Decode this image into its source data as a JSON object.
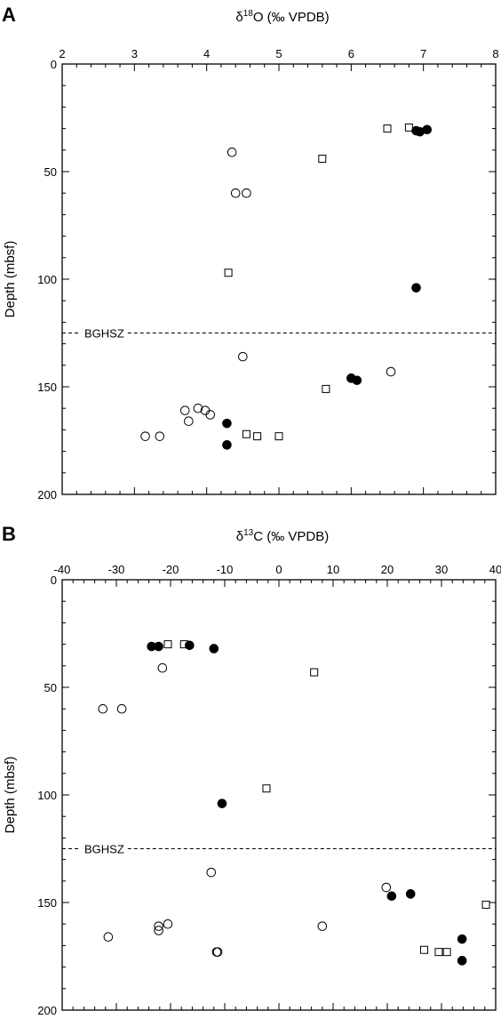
{
  "chart_data": [
    {
      "panel": "A",
      "type": "scatter",
      "x_axis": {
        "label_main": "δ",
        "label_sup": "18",
        "label_rest": "O (‰ VPDB)",
        "min": 2,
        "max": 8,
        "tick_labels": [
          "2",
          "3",
          "4",
          "5",
          "6",
          "7",
          "8"
        ],
        "position": "top"
      },
      "y_axis": {
        "label": "Depth (mbsf)",
        "min": 0,
        "max": 200,
        "inverted": true,
        "tick_labels": [
          "0",
          "50",
          "100",
          "150",
          "200"
        ]
      },
      "annotation": {
        "text": "BGHSZ",
        "depth": 125
      },
      "series": [
        {
          "marker": "open-circle",
          "points": [
            [
              4.35,
              41
            ],
            [
              4.4,
              60
            ],
            [
              4.55,
              60
            ],
            [
              4.5,
              136
            ],
            [
              6.55,
              143
            ],
            [
              3.7,
              161
            ],
            [
              3.75,
              166
            ],
            [
              3.88,
              160
            ],
            [
              3.98,
              161
            ],
            [
              4.05,
              163
            ],
            [
              3.15,
              173
            ],
            [
              3.35,
              173
            ]
          ]
        },
        {
          "marker": "open-square",
          "points": [
            [
              6.5,
              30
            ],
            [
              6.8,
              29.5
            ],
            [
              5.6,
              44
            ],
            [
              4.3,
              97
            ],
            [
              5.65,
              151
            ],
            [
              4.55,
              172
            ],
            [
              4.7,
              173
            ],
            [
              5.0,
              173
            ]
          ]
        },
        {
          "marker": "filled-circle",
          "points": [
            [
              6.9,
              31
            ],
            [
              6.95,
              31.5
            ],
            [
              7.05,
              30.5
            ],
            [
              6.9,
              104
            ],
            [
              6.0,
              146
            ],
            [
              6.08,
              147
            ],
            [
              4.28,
              167
            ],
            [
              4.28,
              177
            ]
          ]
        }
      ]
    },
    {
      "panel": "B",
      "type": "scatter",
      "x_axis": {
        "label_main": "δ",
        "label_sup": "13",
        "label_rest": "C (‰ VPDB)",
        "min": -40,
        "max": 40,
        "tick_labels": [
          "-40",
          "-30",
          "-20",
          "-10",
          "0",
          "10",
          "20",
          "30",
          "40"
        ],
        "position": "top"
      },
      "y_axis": {
        "label": "Depth (mbsf)",
        "min": 0,
        "max": 200,
        "inverted": true,
        "tick_labels": [
          "0",
          "50",
          "100",
          "150",
          "200"
        ]
      },
      "annotation": {
        "text": "BGHSZ",
        "depth": 125
      },
      "series": [
        {
          "marker": "open-circle",
          "points": [
            [
              -21.5,
              41
            ],
            [
              -32.5,
              60
            ],
            [
              -29,
              60
            ],
            [
              -12.5,
              136
            ],
            [
              19.8,
              143
            ],
            [
              -31.5,
              166
            ],
            [
              -22.2,
              161
            ],
            [
              -22.2,
              163
            ],
            [
              -20.5,
              160
            ],
            [
              8,
              161
            ],
            [
              -11.5,
              173
            ],
            [
              -11.3,
              173
            ]
          ]
        },
        {
          "marker": "open-square",
          "points": [
            [
              -20.5,
              30
            ],
            [
              -17.5,
              30
            ],
            [
              6.5,
              43
            ],
            [
              -2.3,
              97
            ],
            [
              38.2,
              151
            ],
            [
              26.8,
              172
            ],
            [
              29.5,
              173
            ],
            [
              31,
              173
            ]
          ]
        },
        {
          "marker": "filled-circle",
          "points": [
            [
              -23.5,
              31
            ],
            [
              -22.2,
              31
            ],
            [
              -16.5,
              30.5
            ],
            [
              -12,
              32
            ],
            [
              -10.5,
              104
            ],
            [
              20.8,
              147
            ],
            [
              24.3,
              146
            ],
            [
              33.8,
              167
            ],
            [
              33.8,
              177
            ]
          ]
        }
      ]
    }
  ]
}
